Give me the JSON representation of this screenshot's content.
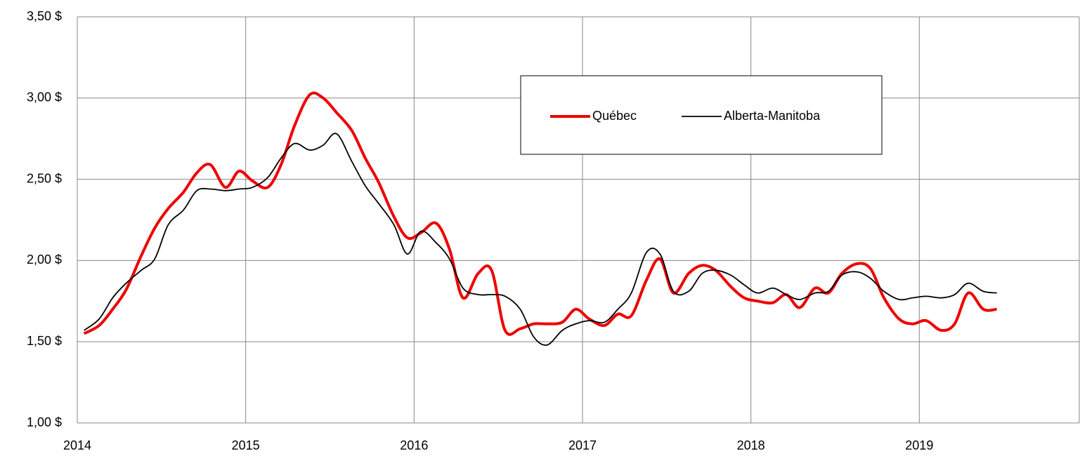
{
  "chart_data": {
    "type": "line",
    "x": [
      2014.04,
      2014.13,
      2014.21,
      2014.29,
      2014.38,
      2014.46,
      2014.54,
      2014.63,
      2014.71,
      2014.79,
      2014.88,
      2014.96,
      2015.04,
      2015.13,
      2015.21,
      2015.29,
      2015.38,
      2015.46,
      2015.54,
      2015.63,
      2015.71,
      2015.79,
      2015.88,
      2015.96,
      2016.04,
      2016.13,
      2016.21,
      2016.29,
      2016.38,
      2016.46,
      2016.54,
      2016.63,
      2016.71,
      2016.79,
      2016.88,
      2016.96,
      2017.04,
      2017.13,
      2017.21,
      2017.29,
      2017.38,
      2017.46,
      2017.54,
      2017.63,
      2017.71,
      2017.79,
      2017.88,
      2017.96,
      2018.04,
      2018.13,
      2018.21,
      2018.29,
      2018.38,
      2018.46,
      2018.54,
      2018.63,
      2018.71,
      2018.79,
      2018.88,
      2018.96,
      2019.04,
      2019.13,
      2019.21,
      2019.29,
      2019.38,
      2019.46
    ],
    "series": [
      {
        "name": "Québec",
        "color": "#ee0000",
        "width": 4,
        "values": [
          1.55,
          1.6,
          1.7,
          1.82,
          2.03,
          2.2,
          2.32,
          2.42,
          2.54,
          2.59,
          2.45,
          2.55,
          2.49,
          2.45,
          2.59,
          2.83,
          3.02,
          3.0,
          2.91,
          2.8,
          2.63,
          2.48,
          2.27,
          2.14,
          2.17,
          2.23,
          2.07,
          1.77,
          1.92,
          1.94,
          1.57,
          1.58,
          1.61,
          1.61,
          1.62,
          1.7,
          1.64,
          1.6,
          1.67,
          1.66,
          1.88,
          2.01,
          1.8,
          1.92,
          1.97,
          1.94,
          1.84,
          1.77,
          1.75,
          1.74,
          1.79,
          1.71,
          1.83,
          1.8,
          1.92,
          1.98,
          1.95,
          1.77,
          1.64,
          1.61,
          1.63,
          1.57,
          1.61,
          1.8,
          1.7,
          1.7
        ]
      },
      {
        "name": "Alberta-Manitoba",
        "color": "#000000",
        "width": 1.8,
        "values": [
          1.57,
          1.64,
          1.77,
          1.86,
          1.94,
          2.01,
          2.22,
          2.31,
          2.43,
          2.44,
          2.43,
          2.44,
          2.45,
          2.51,
          2.63,
          2.72,
          2.68,
          2.71,
          2.78,
          2.61,
          2.46,
          2.35,
          2.22,
          2.04,
          2.18,
          2.11,
          2.01,
          1.83,
          1.79,
          1.79,
          1.78,
          1.7,
          1.53,
          1.48,
          1.57,
          1.61,
          1.63,
          1.62,
          1.7,
          1.8,
          2.05,
          2.04,
          1.81,
          1.81,
          1.92,
          1.94,
          1.91,
          1.85,
          1.8,
          1.83,
          1.79,
          1.76,
          1.8,
          1.81,
          1.91,
          1.93,
          1.89,
          1.81,
          1.76,
          1.77,
          1.78,
          1.77,
          1.79,
          1.86,
          1.81,
          1.8
        ]
      }
    ],
    "xlim": [
      2014,
      2019.95
    ],
    "xticks": [
      2014,
      2015,
      2016,
      2017,
      2018,
      2019
    ],
    "ylim": [
      1,
      3.5
    ],
    "yticks": [
      {
        "value": 1,
        "label": "1,00 $"
      },
      {
        "value": 1.5,
        "label": "1,50 $"
      },
      {
        "value": 2,
        "label": "2,00 $"
      },
      {
        "value": 2.5,
        "label": "2,50 $"
      },
      {
        "value": 3,
        "label": "3,00 $"
      },
      {
        "value": 3.5,
        "label": "3,50 $"
      }
    ],
    "grid": true,
    "legend": "top-right"
  }
}
